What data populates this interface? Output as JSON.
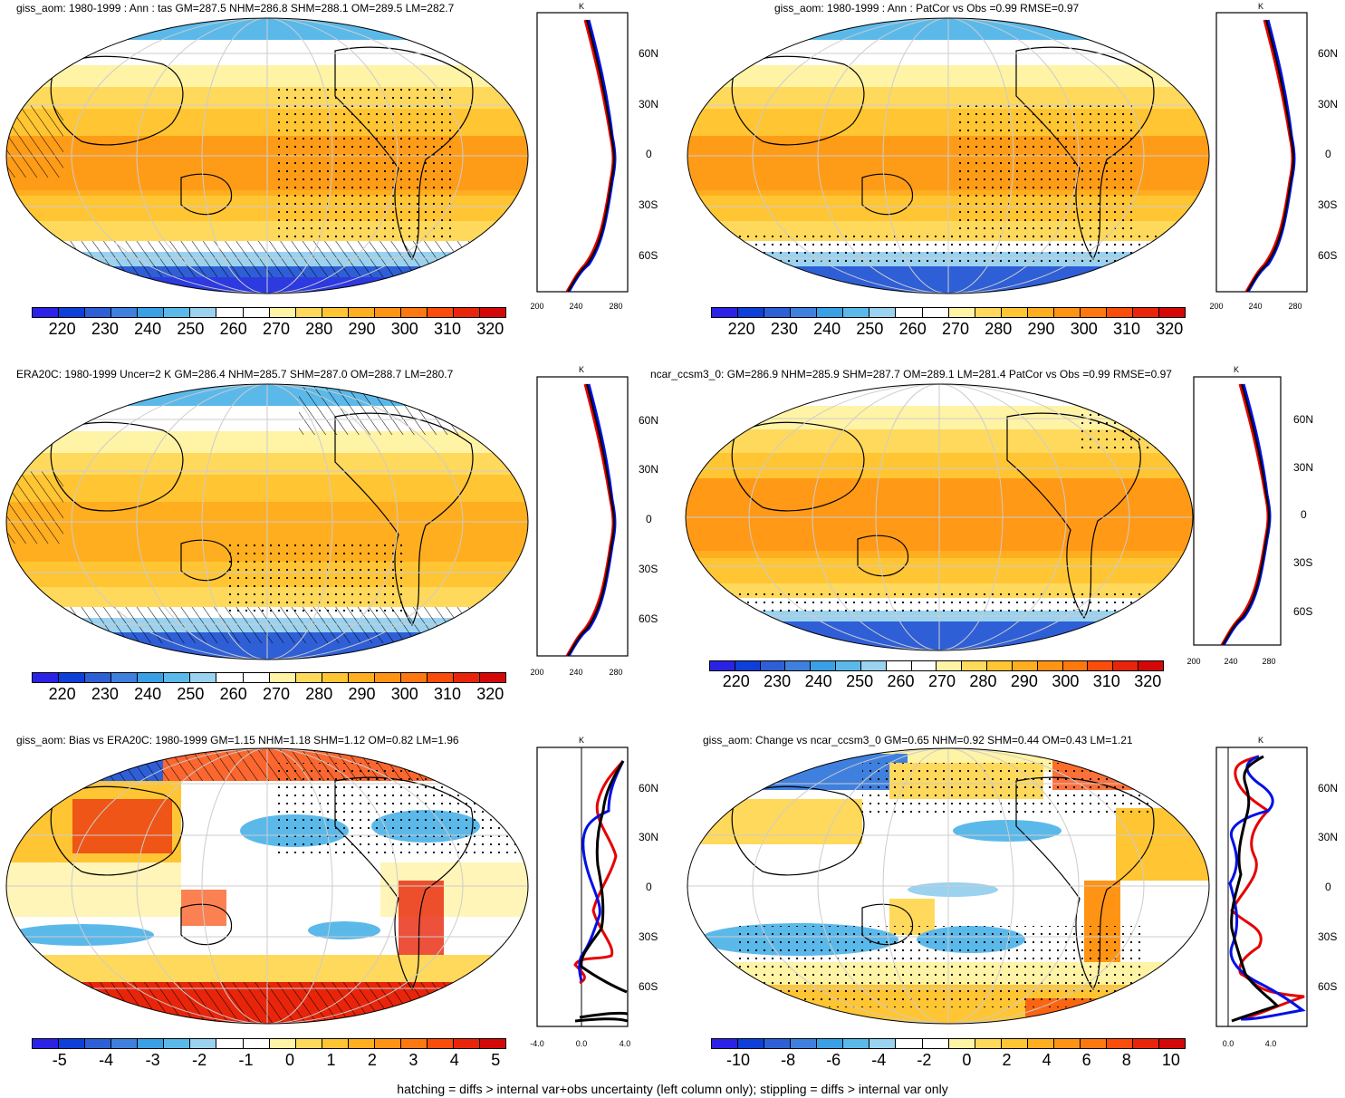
{
  "colors": {
    "abs_scale": [
      "#2b22e6",
      "#0e3fd8",
      "#2f5fd6",
      "#3f80de",
      "#3aa0e6",
      "#5bb9ea",
      "#9ad2ef",
      "#ffffff",
      "#ffffff",
      "#fff3a6",
      "#ffd95c",
      "#ffc533",
      "#ffae1f",
      "#ff9414",
      "#ff780f",
      "#fa4c0a",
      "#e8250a",
      "#d40808"
    ],
    "diff_scale": [
      "#2b22e6",
      "#0e3fd8",
      "#2f5fd6",
      "#3f80de",
      "#3aa0e6",
      "#5bb9ea",
      "#9ad2ef",
      "#ffffff",
      "#ffffff",
      "#fff3a6",
      "#ffd95c",
      "#ffc533",
      "#ffae1f",
      "#ff9414",
      "#ff780f",
      "#fa4c0a",
      "#e8250a",
      "#d40808"
    ],
    "model_line": "#e60000",
    "obs_line": "#0010e6",
    "mean_line": "#000000"
  },
  "panels": [
    {
      "title": "giss_aom: 1980-1999 : Ann : tas GM=287.5 NHM=286.8 SHM=288.1 OM=289.5 LM=282.7",
      "field": "temperature",
      "colorbar_labels": [
        "220",
        "230",
        "240",
        "250",
        "260",
        "270",
        "280",
        "290",
        "300",
        "310",
        "320"
      ],
      "zonal_xticks": [
        "200",
        "240",
        "280"
      ],
      "zonal_unit": "K",
      "zonal_yticks": [
        "60N",
        "30N",
        "0",
        "30S",
        "60S"
      ]
    },
    {
      "title": "giss_aom: 1980-1999 : Ann : PatCor vs Obs =0.99 RMSE=0.97",
      "field": "temperature",
      "colorbar_labels": [
        "220",
        "230",
        "240",
        "250",
        "260",
        "270",
        "280",
        "290",
        "300",
        "310",
        "320"
      ],
      "zonal_xticks": [
        "200",
        "240",
        "280"
      ],
      "zonal_unit": "K",
      "zonal_yticks": [
        "60N",
        "30N",
        "0",
        "30S",
        "60S"
      ]
    },
    {
      "title": "ERA20C: 1980-1999 Uncer=2 K GM=286.4 NHM=285.7 SHM=287.0 OM=288.7 LM=280.7",
      "field": "temperature",
      "colorbar_labels": [
        "220",
        "230",
        "240",
        "250",
        "260",
        "270",
        "280",
        "290",
        "300",
        "310",
        "320"
      ],
      "zonal_xticks": [
        "200",
        "240",
        "280"
      ],
      "zonal_unit": "K",
      "zonal_yticks": [
        "60N",
        "30N",
        "0",
        "30S",
        "60S"
      ]
    },
    {
      "title": "ncar_ccsm3_0: GM=286.9 NHM=285.9 SHM=287.7 OM=289.1 LM=281.4 PatCor vs Obs =0.99 RMSE=0.97",
      "field": "temperature",
      "colorbar_labels": [
        "220",
        "230",
        "240",
        "250",
        "260",
        "270",
        "280",
        "290",
        "300",
        "310",
        "320"
      ],
      "zonal_xticks": [
        "200",
        "240",
        "280"
      ],
      "zonal_unit": "K",
      "zonal_yticks": [
        "60N",
        "30N",
        "0",
        "30S",
        "60S"
      ]
    },
    {
      "title": "giss_aom: Bias vs ERA20C: 1980-1999 GM=1.15 NHM=1.18 SHM=1.12 OM=0.82 LM=1.96",
      "field": "bias",
      "colorbar_labels": [
        "-5",
        "-4",
        "-3",
        "-2",
        "-1",
        "0",
        "1",
        "2",
        "3",
        "4",
        "5"
      ],
      "zonal_xticks": [
        "-4.0",
        "0.0",
        "4.0"
      ],
      "zonal_unit": "K",
      "zonal_yticks": [
        "60N",
        "30N",
        "0",
        "30S",
        "60S"
      ]
    },
    {
      "title": "giss_aom: Change vs ncar_ccsm3_0 GM=0.65 NHM=0.92 SHM=0.44 OM=0.43 LM=1.21",
      "field": "change",
      "colorbar_labels": [
        "-10",
        "-8",
        "-6",
        "-4",
        "-2",
        "0",
        "2",
        "4",
        "6",
        "8",
        "10"
      ],
      "zonal_xticks": [
        "0.0",
        "4.0"
      ],
      "zonal_unit": "K",
      "zonal_yticks": [
        "60N",
        "30N",
        "0",
        "30S",
        "60S"
      ]
    }
  ],
  "footnote": "hatching = diffs > internal var+obs uncertainty (left column only); stippling = diffs > internal var only"
}
